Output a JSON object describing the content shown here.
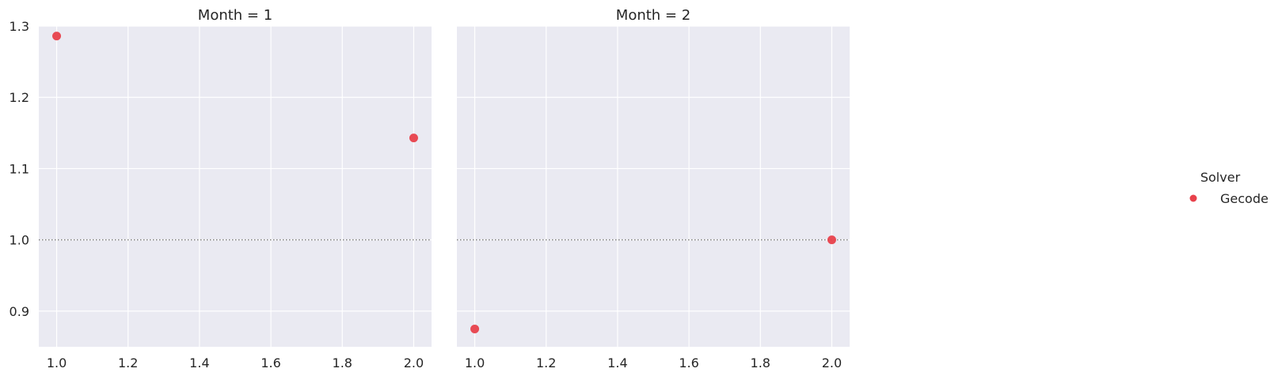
{
  "chart_data": {
    "type": "scatter",
    "facet_variable": "Month",
    "xlim": [
      0.95,
      2.05
    ],
    "ylim": [
      0.85,
      1.3
    ],
    "x_ticks": [
      1.0,
      1.2,
      1.4,
      1.6,
      1.8,
      2.0
    ],
    "x_tick_labels": [
      "1.0",
      "1.2",
      "1.4",
      "1.6",
      "1.8",
      "2.0"
    ],
    "y_ticks": [
      0.9,
      1.0,
      1.1,
      1.2,
      1.3
    ],
    "y_tick_labels": [
      "0.9",
      "1.0",
      "1.1",
      "1.2",
      "1.3"
    ],
    "reference_line": {
      "y": 1.0,
      "style": "dotted",
      "color": "#7f7f7f"
    },
    "grid": true,
    "background": "#eaeaf2",
    "legend": {
      "title": "Solver",
      "placement": "right",
      "entries": [
        {
          "label": "Gecode",
          "color": "#e8414b"
        }
      ]
    },
    "panels": [
      {
        "title": "Month = 1",
        "series": [
          {
            "name": "Gecode",
            "color": "#e8414b",
            "points": [
              {
                "x": 1.0,
                "y": 1.286
              },
              {
                "x": 2.0,
                "y": 1.143
              }
            ]
          }
        ]
      },
      {
        "title": "Month = 2",
        "series": [
          {
            "name": "Gecode",
            "color": "#e8414b",
            "points": [
              {
                "x": 1.0,
                "y": 0.875
              },
              {
                "x": 2.0,
                "y": 1.0
              }
            ]
          }
        ]
      }
    ]
  }
}
